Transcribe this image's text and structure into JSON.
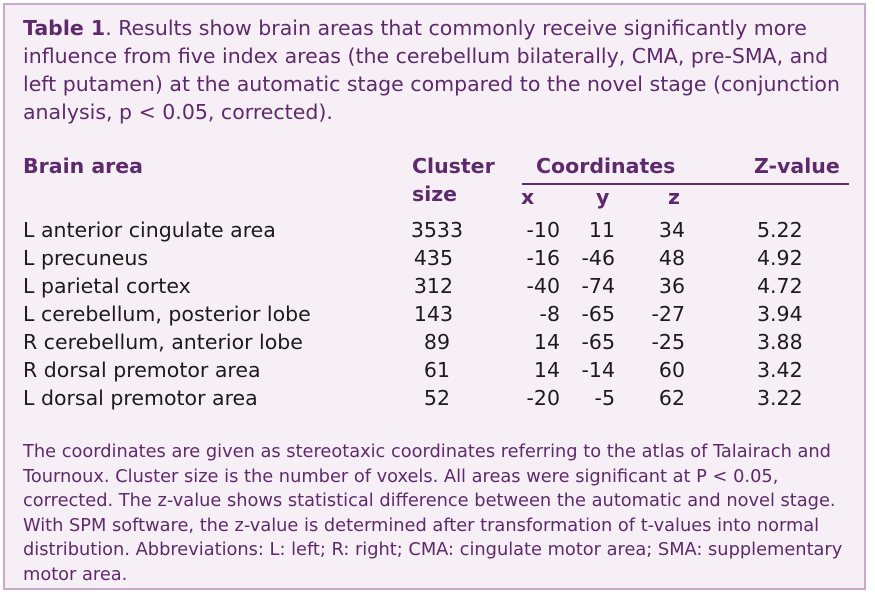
{
  "caption": {
    "label": "Table 1",
    "text": ". Results show brain areas that commonly receive significantly more influence from five index areas (the cerebellum bilaterally, CMA, pre-SMA, and left putamen) at the automatic stage compared to the novel stage (conjunction analysis, p < 0.05, corrected)."
  },
  "headers": {
    "brain_area": "Brain area",
    "cluster_line1": "Cluster",
    "cluster_line2": "size",
    "coordinates": "Coordinates",
    "x": "x",
    "y": "y",
    "z": "z",
    "zvalue": "Z-value"
  },
  "rows": [
    {
      "area": "L anterior cingulate area",
      "cluster": "3533",
      "x": "-10",
      "y": "11",
      "z": "34",
      "zval": "5.22"
    },
    {
      "area": "L precuneus",
      "cluster": "435",
      "x": "-16",
      "y": "-46",
      "z": "48",
      "zval": "4.92"
    },
    {
      "area": "L parietal cortex",
      "cluster": "312",
      "x": "-40",
      "y": "-74",
      "z": "36",
      "zval": "4.72"
    },
    {
      "area": "L cerebellum, posterior lobe",
      "cluster": "143",
      "x": "-8",
      "y": "-65",
      "z": "-27",
      "zval": "3.94"
    },
    {
      "area": "R cerebellum, anterior lobe",
      "cluster": "89",
      "x": "14",
      "y": "-65",
      "z": "-25",
      "zval": "3.88"
    },
    {
      "area": "R dorsal premotor area",
      "cluster": "61",
      "x": "14",
      "y": "-14",
      "z": "60",
      "zval": "3.42"
    },
    {
      "area": "L dorsal premotor area",
      "cluster": "52",
      "x": "-20",
      "y": "-5",
      "z": "62",
      "zval": "3.22"
    }
  ],
  "footnote": "The coordinates are given as stereotaxic coordinates referring to the atlas of Talairach and Tournoux. Cluster size is the number of voxels. All areas were significant at P < 0.05, corrected. The z-value shows statistical difference between the automatic and novel stage. With SPM software, the z-value is determined after transformation of t-values into normal distribution. Abbreviations: L: left; R: right; CMA: cingulate motor area; SMA: supplementary motor area."
}
